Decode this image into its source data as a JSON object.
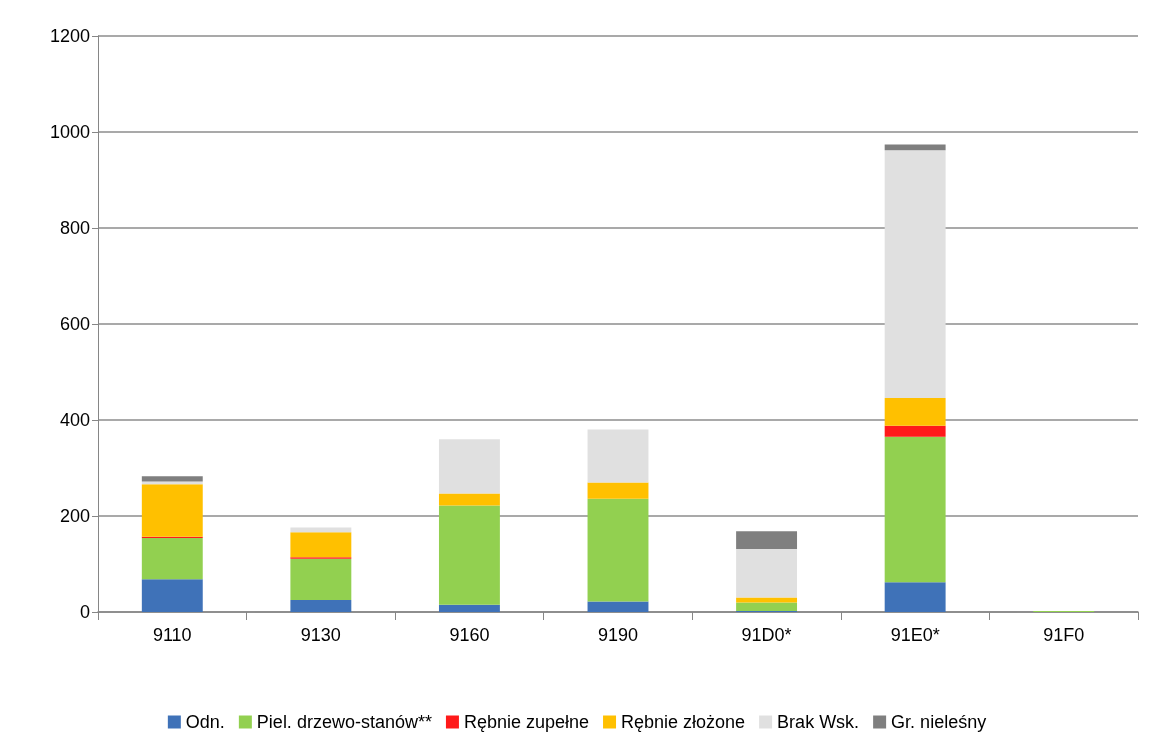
{
  "chart_data": {
    "type": "bar",
    "stacked": true,
    "categories": [
      "9110",
      "9130",
      "9160",
      "9190",
      "91D0*",
      "91E0*",
      "91F0"
    ],
    "series": [
      {
        "name": "Odn.",
        "color": "#3f72b8",
        "values": [
          68,
          25,
          15,
          22,
          2,
          62,
          0
        ]
      },
      {
        "name": "Piel. drzewo-stanów**",
        "color": "#92d050",
        "values": [
          86,
          86,
          207,
          214,
          18,
          303,
          2
        ]
      },
      {
        "name": "Rębnie zupełne",
        "color": "#ff1a1a",
        "values": [
          3,
          3,
          0,
          0,
          0,
          23,
          0
        ]
      },
      {
        "name": "Rębnie złożone",
        "color": "#ffc000",
        "values": [
          109,
          52,
          25,
          34,
          10,
          58,
          0
        ]
      },
      {
        "name": "Brak Wsk.",
        "color": "#e0e0e0",
        "values": [
          6,
          10,
          113,
          110,
          101,
          516,
          0
        ]
      },
      {
        "name": "Gr. nieleśny",
        "color": "#7f7f7f",
        "values": [
          11,
          0,
          0,
          0,
          37,
          12,
          0
        ]
      }
    ],
    "ylim": [
      0,
      1200
    ],
    "yticks": [
      0,
      200,
      400,
      600,
      800,
      1000,
      1200
    ],
    "grid": "y",
    "legend": "bottom"
  }
}
